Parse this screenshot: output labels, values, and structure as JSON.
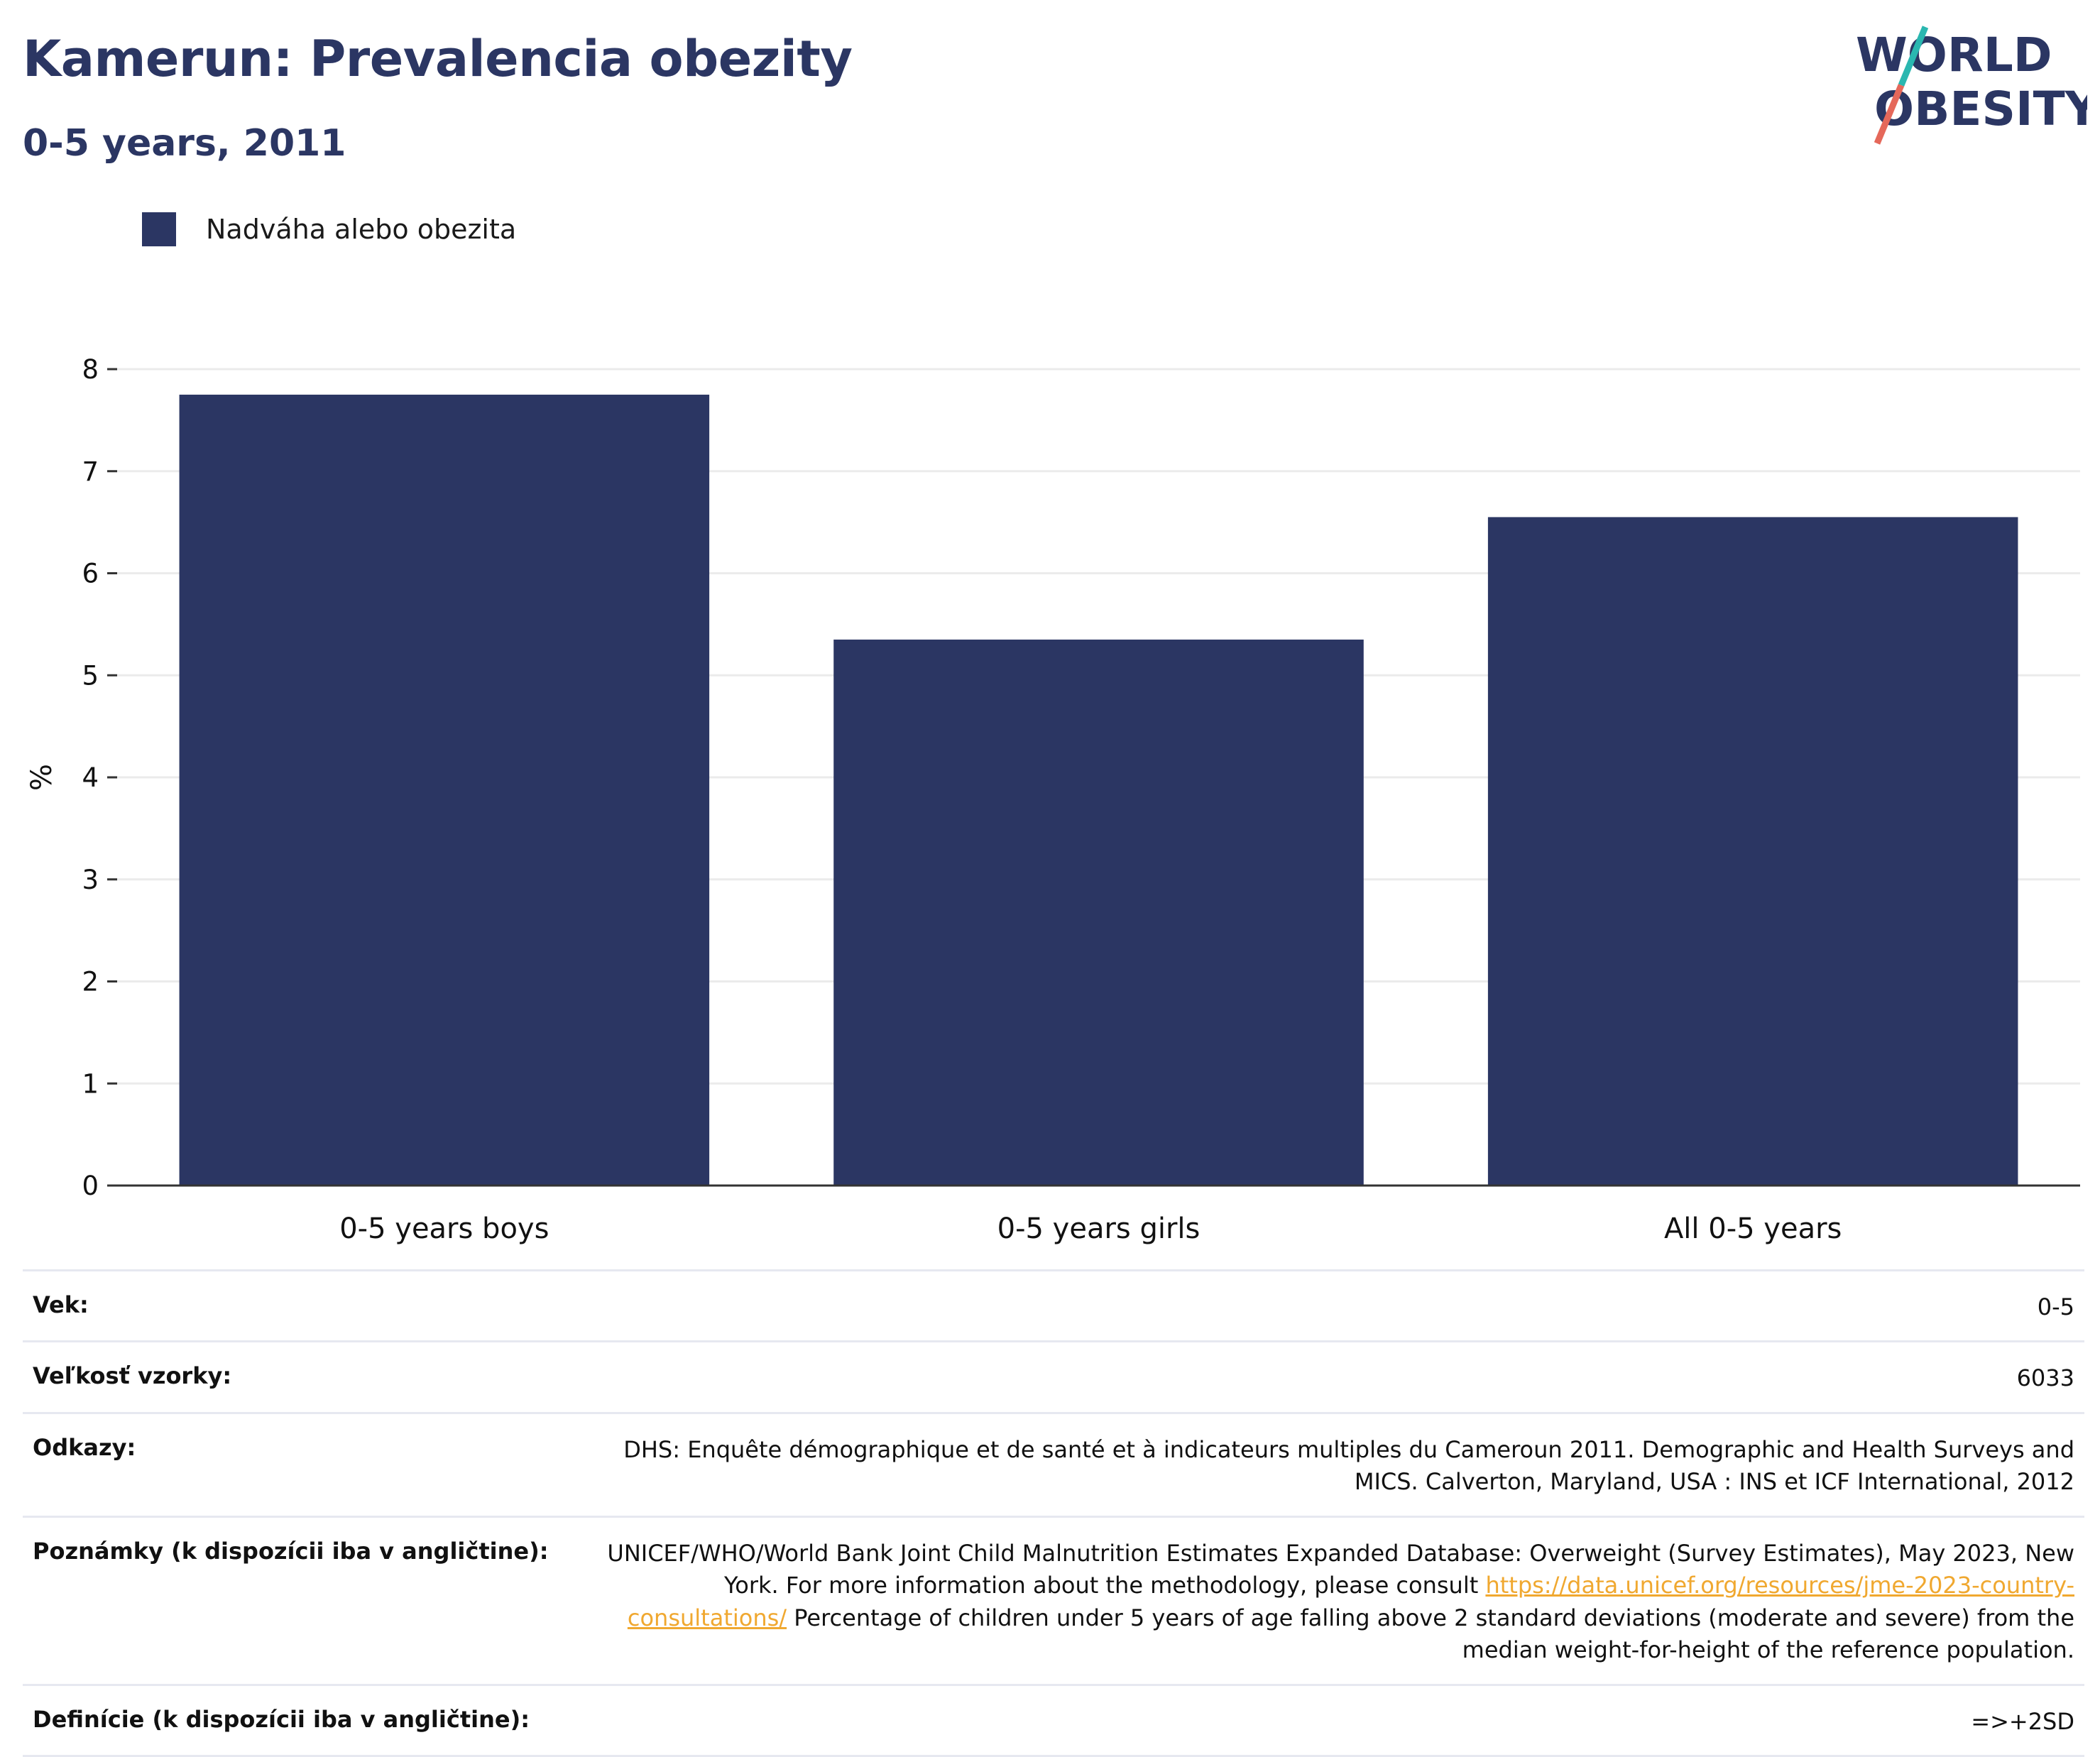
{
  "header": {
    "title": "Kamerun: Prevalencia obezity",
    "subtitle": "0-5 years, 2011"
  },
  "logo": {
    "line1": "WORLD",
    "line2": "OBESITY"
  },
  "legend": {
    "label": "Nadváha alebo obezita",
    "color": "#2b3663"
  },
  "chart_data": {
    "type": "bar",
    "categories": [
      "0-5 years boys",
      "0-5 years girls",
      "All 0-5 years"
    ],
    "series": [
      {
        "name": "Nadváha alebo obezita",
        "values": [
          7.75,
          5.35,
          6.55
        ]
      }
    ],
    "title": "Kamerun: Prevalencia obezity",
    "subtitle": "0-5 years, 2011",
    "xlabel": "",
    "ylabel": "%",
    "ylim": [
      0,
      8
    ],
    "yticks": [
      0,
      1,
      2,
      3,
      4,
      5,
      6,
      7,
      8
    ],
    "grid": true,
    "legend_position": "top-left",
    "bar_color": "#2b3663"
  },
  "info": {
    "age": {
      "label": "Vek:",
      "value": "0-5"
    },
    "sample": {
      "label": "Veľkosť vzorky:",
      "value": "6033"
    },
    "refs": {
      "label": "Odkazy:",
      "value": "DHS: Enquête démographique et de santé et à indicateurs multiples du Cameroun 2011. Demographic and Health Surveys and MICS. Calverton, Maryland, USA : INS et ICF International, 2012"
    },
    "notes": {
      "label": "Poznámky (k dispozícii iba v angličtine):",
      "text1": "UNICEF/WHO/World Bank Joint Child Malnutrition Estimates Expanded Database: Overweight (Survey Estimates), May 2023, New York. For more information about the methodology, please consult ",
      "link": "https://data.unicef.org/resources/jme-2023-country-consultations/",
      "text2": " Percentage of children under 5 years of age falling above 2 standard deviations (moderate and severe) from the median weight-for-height of the reference population."
    },
    "defs": {
      "label": "Definície (k dispozícii iba v angličtine):",
      "value": "=>+2SD"
    }
  }
}
